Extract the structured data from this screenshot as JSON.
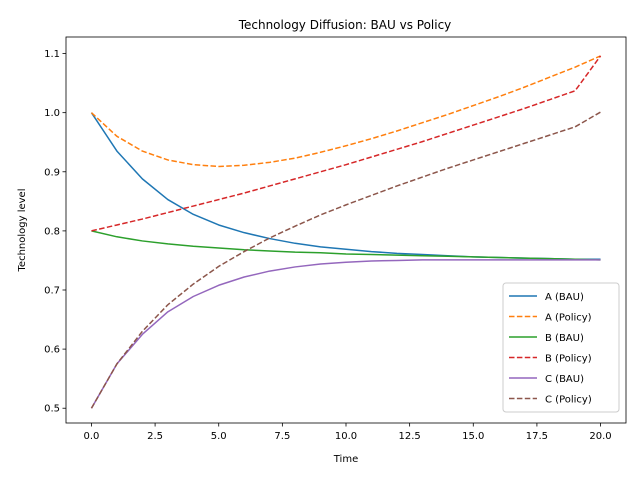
{
  "chart_data": {
    "type": "line",
    "title": "Technology Diffusion: BAU vs Policy",
    "xlabel": "Time",
    "ylabel": "Technology level",
    "xlim": [
      -1,
      21
    ],
    "ylim": [
      0.475,
      1.128
    ],
    "x_ticks": [
      0,
      2.5,
      5,
      7.5,
      10,
      12.5,
      15,
      17.5,
      20
    ],
    "x_tick_labels": [
      "0.0",
      "2.5",
      "5.0",
      "7.5",
      "10.0",
      "12.5",
      "15.0",
      "17.5",
      "20.0"
    ],
    "y_ticks": [
      0.5,
      0.6,
      0.7,
      0.8,
      0.9,
      1.0,
      1.1
    ],
    "y_tick_labels": [
      "0.5",
      "0.6",
      "0.7",
      "0.8",
      "0.9",
      "1.0",
      "1.1"
    ],
    "grid": false,
    "legend_position": "bottom-right",
    "x": [
      0,
      1,
      2,
      3,
      4,
      5,
      6,
      7,
      8,
      9,
      10,
      11,
      12,
      13,
      14,
      15,
      16,
      17,
      18,
      19,
      20
    ],
    "series": [
      {
        "name": "A (BAU)",
        "color": "#1f77b4",
        "dash": "solid",
        "values": [
          1.0,
          0.935,
          0.888,
          0.853,
          0.828,
          0.81,
          0.797,
          0.787,
          0.779,
          0.773,
          0.769,
          0.765,
          0.762,
          0.76,
          0.758,
          0.756,
          0.755,
          0.754,
          0.753,
          0.752,
          0.752
        ]
      },
      {
        "name": "A (Policy)",
        "color": "#ff7f0e",
        "dash": "dashed",
        "values": [
          1.0,
          0.96,
          0.935,
          0.92,
          0.912,
          0.909,
          0.911,
          0.916,
          0.923,
          0.933,
          0.944,
          0.956,
          0.969,
          0.983,
          0.997,
          1.012,
          1.027,
          1.043,
          1.06,
          1.077,
          1.096
        ]
      },
      {
        "name": "B (BAU)",
        "color": "#2ca02c",
        "dash": "solid",
        "values": [
          0.8,
          0.79,
          0.783,
          0.778,
          0.774,
          0.771,
          0.768,
          0.766,
          0.764,
          0.763,
          0.761,
          0.76,
          0.759,
          0.758,
          0.757,
          0.756,
          0.755,
          0.754,
          0.753,
          0.752,
          0.751
        ]
      },
      {
        "name": "B (Policy)",
        "color": "#d62728",
        "dash": "dashed",
        "values": [
          0.8,
          0.81,
          0.82,
          0.831,
          0.842,
          0.853,
          0.864,
          0.876,
          0.888,
          0.9,
          0.912,
          0.925,
          0.938,
          0.951,
          0.965,
          0.979,
          0.993,
          1.007,
          1.022,
          1.037,
          1.096
        ]
      },
      {
        "name": "C (BAU)",
        "color": "#9467bd",
        "dash": "solid",
        "values": [
          0.5,
          0.575,
          0.625,
          0.663,
          0.689,
          0.708,
          0.722,
          0.732,
          0.739,
          0.744,
          0.747,
          0.749,
          0.75,
          0.751,
          0.751,
          0.751,
          0.751,
          0.751,
          0.751,
          0.751,
          0.751
        ]
      },
      {
        "name": "C (Policy)",
        "color": "#8c564b",
        "dash": "dashed",
        "values": [
          0.5,
          0.575,
          0.63,
          0.675,
          0.71,
          0.74,
          0.765,
          0.788,
          0.808,
          0.827,
          0.844,
          0.86,
          0.876,
          0.891,
          0.906,
          0.92,
          0.934,
          0.948,
          0.962,
          0.976,
          1.001
        ]
      }
    ]
  }
}
